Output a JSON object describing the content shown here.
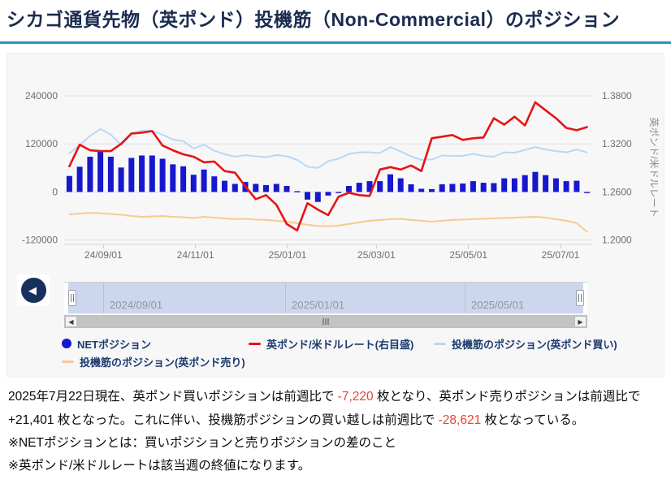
{
  "page": {
    "title": "シカゴ通貨先物（英ポンド）投機筋（Non-Commercial）のポジション",
    "accent_color": "#2a96ba"
  },
  "chart_data": {
    "type": "bar+line combo",
    "x": [
      "2024/08/06",
      "2024/08/13",
      "2024/08/20",
      "2024/08/27",
      "2024/09/03",
      "2024/09/10",
      "2024/09/17",
      "2024/09/24",
      "2024/10/01",
      "2024/10/08",
      "2024/10/15",
      "2024/10/22",
      "2024/10/29",
      "2024/11/05",
      "2024/11/12",
      "2024/11/19",
      "2024/11/26",
      "2024/12/03",
      "2024/12/10",
      "2024/12/17",
      "2024/12/24",
      "2024/12/31",
      "2025/01/07",
      "2025/01/14",
      "2025/01/21",
      "2025/01/28",
      "2025/02/04",
      "2025/02/11",
      "2025/02/18",
      "2025/02/25",
      "2025/03/04",
      "2025/03/11",
      "2025/03/18",
      "2025/03/25",
      "2025/04/01",
      "2025/04/08",
      "2025/04/15",
      "2025/04/22",
      "2025/04/29",
      "2025/05/06",
      "2025/05/13",
      "2025/05/20",
      "2025/05/27",
      "2025/06/03",
      "2025/06/10",
      "2025/06/17",
      "2025/06/24",
      "2025/07/01",
      "2025/07/08",
      "2025/07/15",
      "2025/07/22"
    ],
    "series": [
      {
        "name": "NETポジション",
        "type": "bar",
        "axis": "left",
        "color": "#1717cd",
        "values": [
          40000,
          63000,
          88000,
          104000,
          88000,
          61000,
          85000,
          91000,
          91000,
          83000,
          69000,
          64000,
          43000,
          56000,
          39000,
          28000,
          20000,
          25000,
          20000,
          17000,
          20000,
          15000,
          2000,
          -19000,
          -25000,
          -9000,
          -1000,
          15000,
          23000,
          27000,
          27000,
          44000,
          34000,
          19000,
          8000,
          7000,
          19000,
          20000,
          21000,
          27000,
          23000,
          22000,
          34000,
          34000,
          42000,
          50000,
          42000,
          34000,
          27000,
          28000,
          -621
        ]
      },
      {
        "name": "英ポンド/米ドルレート(右目盛)",
        "type": "line",
        "axis": "right",
        "color": "#e61414",
        "values": [
          1.292,
          1.319,
          1.312,
          1.311,
          1.311,
          1.32,
          1.333,
          1.334,
          1.336,
          1.318,
          1.312,
          1.307,
          1.304,
          1.297,
          1.298,
          1.286,
          1.284,
          1.267,
          1.251,
          1.256,
          1.244,
          1.22,
          1.212,
          1.246,
          1.238,
          1.231,
          1.254,
          1.259,
          1.256,
          1.255,
          1.288,
          1.291,
          1.288,
          1.293,
          1.286,
          1.327,
          1.329,
          1.331,
          1.325,
          1.327,
          1.328,
          1.352,
          1.344,
          1.354,
          1.343,
          1.372,
          1.362,
          1.352,
          1.34,
          1.337,
          1.341
        ]
      },
      {
        "name": "投機筋のポジション(英ポンド買い)",
        "type": "line",
        "axis": "left",
        "color": "#b8d8f5",
        "values": [
          96000,
          117000,
          140000,
          157000,
          143000,
          118000,
          145000,
          153000,
          152000,
          143000,
          131000,
          127000,
          108000,
          118000,
          103000,
          94000,
          88000,
          92000,
          89000,
          87000,
          92000,
          89000,
          80000,
          63000,
          60000,
          77000,
          83000,
          95000,
          99000,
          99000,
          97000,
          112000,
          101000,
          89000,
          80000,
          81000,
          91000,
          90000,
          90000,
          95000,
          90000,
          88000,
          99000,
          98000,
          105000,
          112000,
          106000,
          102000,
          99000,
          106000,
          98779
        ]
      },
      {
        "name": "投機筋のポジション(英ポンド売り)",
        "type": "line",
        "axis": "left",
        "color": "#f7ca8e",
        "values": [
          -56000,
          -54000,
          -52000,
          -53000,
          -55000,
          -57000,
          -60000,
          -62000,
          -61000,
          -60000,
          -62000,
          -63000,
          -65000,
          -62000,
          -64000,
          -66000,
          -68000,
          -67000,
          -69000,
          -70000,
          -72000,
          -74000,
          -78000,
          -82000,
          -85000,
          -86000,
          -84000,
          -80000,
          -76000,
          -72000,
          -70000,
          -68000,
          -67000,
          -70000,
          -72000,
          -74000,
          -72000,
          -70000,
          -69000,
          -68000,
          -67000,
          -66000,
          -65000,
          -64000,
          -63000,
          -62000,
          -64000,
          -68000,
          -72000,
          -78000,
          -99400
        ]
      }
    ],
    "left_axis": {
      "ticks": [
        240000,
        120000,
        0,
        -120000
      ],
      "labels": [
        "240000",
        "120000",
        "0",
        "-120000"
      ],
      "range": [
        -160000,
        280000
      ]
    },
    "right_axis": {
      "ticks": [
        1.38,
        1.32,
        1.26,
        1.2
      ],
      "labels": [
        "1.3800",
        "1.3200",
        "1.2600",
        "1.2000"
      ],
      "title": "英ポンド/米ドルレート",
      "range": [
        1.18,
        1.4
      ]
    },
    "x_axis": {
      "tick_labels": [
        "24/09/01",
        "24/11/01",
        "25/01/01",
        "25/03/01",
        "25/05/01",
        "25/07/01"
      ],
      "tick_pos": [
        0.0743,
        0.2486,
        0.4229,
        0.5914,
        0.7657,
        0.94
      ]
    },
    "grid": true,
    "legend_position": "bottom"
  },
  "legend": [
    {
      "label": "NETポジション",
      "marker": "circle",
      "color": "#1717cd",
      "row": 1
    },
    {
      "label": "英ポンド/米ドルレート(右目盛)",
      "marker": "line",
      "color": "#e61414",
      "row": 1
    },
    {
      "label": "投機筋のポジション(英ポンド買い)",
      "marker": "line",
      "color": "#b8d8f5",
      "row": 1
    },
    {
      "label": "投機筋のポジション(英ポンド売り)",
      "marker": "line",
      "color": "#f7ca8e",
      "row": 2
    }
  ],
  "navigator": {
    "labels": [
      {
        "text": "2024/09/01",
        "t": 0.0743
      },
      {
        "text": "2025/01/01",
        "t": 0.4229
      },
      {
        "text": "2025/05/01",
        "t": 0.7657
      }
    ]
  },
  "scrollbar": {
    "left_arrow": "◀",
    "right_arrow": "▶"
  },
  "nav_button": {
    "glyph": "◀"
  },
  "footer": {
    "parts": [
      {
        "text": "2025年7月22日現在、英ポンド買いポジションは前週比で ",
        "red": false
      },
      {
        "text": "-7,220",
        "red": true
      },
      {
        "text": " 枚となり、英ポンド売りポジションは前週比で ",
        "red": false
      },
      {
        "text": "+21,401",
        "red": false
      },
      {
        "text": " 枚となった。これに伴い、投機筋ポジションの買い越しは前週比で ",
        "red": false
      },
      {
        "text": "-28,621",
        "red": true
      },
      {
        "text": " 枚となっている。",
        "red": false
      }
    ],
    "note1": "※NETポジションとは：買いポジションと売りポジションの差のこと",
    "note2": "※英ポンド/米ドルレートは該当週の終値になります。"
  }
}
